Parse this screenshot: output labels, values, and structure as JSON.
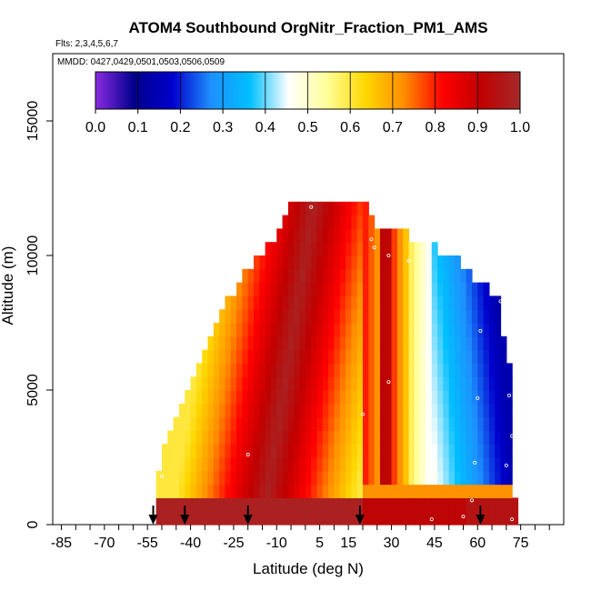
{
  "chart_data": {
    "type": "heatmap",
    "title": "ATOM4 Southbound OrgNitr_Fraction_PM1_AMS",
    "subtitle": "Flts: 2,3,4,5,6,7",
    "date_label": "MMDD: 0427,0429,0501,0503,0506,0509",
    "xlabel": "Latitude (deg N)",
    "ylabel": "Altitude (m)",
    "xlim": [
      -88,
      90
    ],
    "ylim": [
      0,
      17500
    ],
    "x_ticks": [
      -85,
      -70,
      -55,
      -40,
      -25,
      -10,
      5,
      15,
      30,
      45,
      60,
      75
    ],
    "x_minor_step": 5,
    "y_ticks": [
      0,
      5000,
      10000,
      15000
    ],
    "colorbar": {
      "ticks": [
        "0.0",
        "0.1",
        "0.2",
        "0.3",
        "0.4",
        "0.5",
        "0.6",
        "0.7",
        "0.8",
        "0.9",
        "1.0"
      ],
      "range": [
        0,
        1
      ],
      "stops": [
        "#8a2be2",
        "#00008b",
        "#0000cd",
        "#1e90ff",
        "#00bfff",
        "#ffffff",
        "#ffff99",
        "#ffd700",
        "#ff8c00",
        "#ff0000",
        "#c00000",
        "#a52a2a"
      ]
    },
    "arrow_latitudes": [
      -53,
      -42,
      -20,
      19,
      61
    ],
    "columns": [
      {
        "lat": -51,
        "top": 2000
      },
      {
        "lat": -49,
        "top": 3000
      },
      {
        "lat": -47,
        "top": 3500
      },
      {
        "lat": -45,
        "top": 4000
      },
      {
        "lat": -43,
        "top": 4500
      },
      {
        "lat": -41,
        "top": 5000
      },
      {
        "lat": -39,
        "top": 5500
      },
      {
        "lat": -37,
        "top": 6000
      },
      {
        "lat": -35,
        "top": 6500
      },
      {
        "lat": -33,
        "top": 7000
      },
      {
        "lat": -31,
        "top": 7500
      },
      {
        "lat": -29,
        "top": 8000
      },
      {
        "lat": -27,
        "top": 8500
      },
      {
        "lat": -25,
        "top": 8500
      },
      {
        "lat": -23,
        "top": 9000
      },
      {
        "lat": -21,
        "top": 9500
      },
      {
        "lat": -19,
        "top": 9500
      },
      {
        "lat": -17,
        "top": 10000
      },
      {
        "lat": -15,
        "top": 10000
      },
      {
        "lat": -13,
        "top": 10500
      },
      {
        "lat": -11,
        "top": 10500
      },
      {
        "lat": -9,
        "top": 11000
      },
      {
        "lat": -7,
        "top": 11500
      },
      {
        "lat": -5,
        "top": 12000
      },
      {
        "lat": -3,
        "top": 12000
      },
      {
        "lat": -1,
        "top": 12000
      },
      {
        "lat": 1,
        "top": 12000
      },
      {
        "lat": 3,
        "top": 12000
      },
      {
        "lat": 5,
        "top": 12000
      },
      {
        "lat": 7,
        "top": 12000
      },
      {
        "lat": 9,
        "top": 12000
      },
      {
        "lat": 11,
        "top": 12000
      },
      {
        "lat": 13,
        "top": 12000
      },
      {
        "lat": 15,
        "top": 12000
      },
      {
        "lat": 17,
        "top": 12000
      },
      {
        "lat": 19,
        "top": 12000
      },
      {
        "lat": 21,
        "top": 12000
      },
      {
        "lat": 23,
        "top": 11500
      },
      {
        "lat": 25,
        "top": 11000
      },
      {
        "lat": 27,
        "top": 11000
      },
      {
        "lat": 29,
        "top": 11000
      },
      {
        "lat": 31,
        "top": 11000
      },
      {
        "lat": 33,
        "top": 11000
      },
      {
        "lat": 35,
        "top": 11000
      },
      {
        "lat": 37,
        "top": 10500
      },
      {
        "lat": 39,
        "top": 10500
      },
      {
        "lat": 41,
        "top": 10500
      },
      {
        "lat": 43,
        "top": 10500
      },
      {
        "lat": 45,
        "top": 10500
      },
      {
        "lat": 47,
        "top": 10000
      },
      {
        "lat": 49,
        "top": 10000
      },
      {
        "lat": 51,
        "top": 10000
      },
      {
        "lat": 53,
        "top": 10000
      },
      {
        "lat": 55,
        "top": 9500
      },
      {
        "lat": 57,
        "top": 9500
      },
      {
        "lat": 59,
        "top": 9000
      },
      {
        "lat": 61,
        "top": 9000
      },
      {
        "lat": 63,
        "top": 9000
      },
      {
        "lat": 65,
        "top": 8500
      },
      {
        "lat": 67,
        "top": 8500
      },
      {
        "lat": 69,
        "top": 7000
      },
      {
        "lat": 71,
        "top": 6000
      },
      {
        "lat": 73,
        "top": 1000
      }
    ],
    "sample_points": [
      {
        "lat": -56,
        "alt": 1700
      },
      {
        "lat": -50,
        "alt": 1800
      },
      {
        "lat": -20,
        "alt": 2600
      },
      {
        "lat": 2,
        "alt": 11800
      },
      {
        "lat": 20,
        "alt": 4100
      },
      {
        "lat": 23,
        "alt": 10600
      },
      {
        "lat": 24,
        "alt": 10300
      },
      {
        "lat": 29,
        "alt": 5300
      },
      {
        "lat": 29,
        "alt": 10000
      },
      {
        "lat": 36,
        "alt": 9800
      },
      {
        "lat": 41,
        "alt": 6400
      },
      {
        "lat": 43,
        "alt": 3300
      },
      {
        "lat": 43,
        "alt": 2000
      },
      {
        "lat": 44,
        "alt": 200
      },
      {
        "lat": 55,
        "alt": 300
      },
      {
        "lat": 58,
        "alt": 900
      },
      {
        "lat": 59,
        "alt": 2300
      },
      {
        "lat": 60,
        "alt": 4700
      },
      {
        "lat": 61,
        "alt": 7200
      },
      {
        "lat": 68,
        "alt": 8300
      },
      {
        "lat": 70,
        "alt": 2200
      },
      {
        "lat": 71,
        "alt": 4800
      },
      {
        "lat": 72,
        "alt": 3300
      },
      {
        "lat": 72,
        "alt": 200
      }
    ]
  }
}
